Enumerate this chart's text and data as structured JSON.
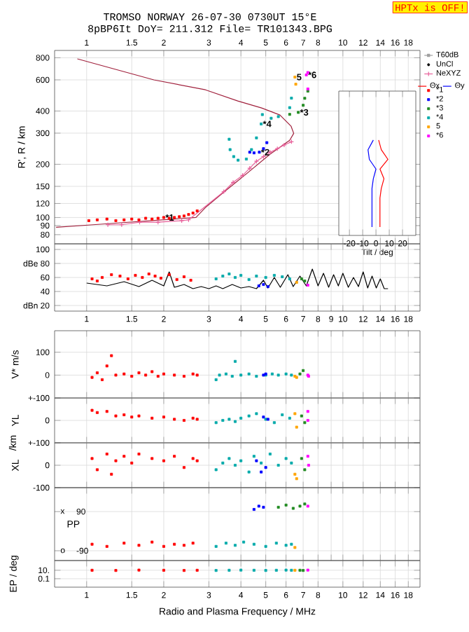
{
  "chart_data": [
    {
      "type": "scatter",
      "title": "TROMSO NORWAY 26-07-30 0730UT 15°E",
      "subtitle": "8pBP6It DoY= 211.312 File= TR101343.BPG",
      "ylabel": "R', R / km",
      "annotations": [
        "HPTx is OFF!",
        {
          "text": "*1",
          "x": 2.0,
          "y": 100
        },
        {
          "text": "*2",
          "x": 4.72,
          "y": 234
        },
        {
          "text": "*3",
          "x": 6.7,
          "y": 393
        },
        {
          "text": "*4",
          "x": 4.8,
          "y": 338
        },
        {
          "text": "5",
          "x": 6.5,
          "y": 622
        },
        {
          "text": "*6",
          "x": 7.2,
          "y": 640
        }
      ],
      "xlim": [
        0.75,
        20
      ],
      "ylim": [
        71,
        880
      ],
      "log": "xy",
      "grid": true,
      "legend": "right",
      "marker": "square",
      "xticks": [
        1,
        1.5,
        2,
        3,
        4,
        5,
        6,
        7,
        8,
        10,
        12,
        14,
        16,
        18
      ],
      "yticks": [
        80,
        90,
        100,
        120,
        150,
        200,
        300,
        400,
        600,
        800
      ],
      "series": [
        {
          "name": "T60dB",
          "type": "line",
          "color": "#a0a0a0"
        },
        {
          "name": "UnCl",
          "color": "#000000",
          "marker": "circle"
        },
        {
          "type": "line",
          "marker": "none",
          "color": "#a0203c",
          "x": [
            0.76,
            1.06,
            2.67,
            2.91,
            3.43,
            4.25,
            5.2,
            6.2,
            6.43,
            6.28,
            5.68,
            4.82,
            3.89,
            2.91,
            1.83,
            0.92
          ],
          "values": [
            88,
            91,
            100,
            114,
            139,
            179,
            228,
            273,
            299,
            328,
            380,
            416,
            456,
            527,
            600,
            789
          ]
        },
        {
          "name": "NeXYZ",
          "type": "line",
          "marker": "cross",
          "color": "#e8609a",
          "x": [
            1.21,
            1.37,
            1.61,
            1.9,
            2.35,
            2.5,
            3.43,
            3.73,
            4.06,
            4.33,
            4.6,
            4.9,
            5.2,
            5.55,
            5.9,
            6.3
          ],
          "values": [
            91,
            91,
            94,
            94,
            96,
            97,
            140,
            158,
            173,
            190,
            208,
            221,
            234,
            245,
            257,
            268
          ]
        },
        {
          "name": "*1",
          "color": "#ff0000",
          "x": [
            1.02,
            1.1,
            1.2,
            1.3,
            1.4,
            1.5,
            1.6,
            1.7,
            1.8,
            1.9,
            2.0,
            2.1,
            2.2,
            2.3,
            2.4,
            2.5,
            2.6,
            2.7
          ],
          "values": [
            96,
            97,
            98,
            96,
            97,
            98,
            97,
            99,
            98,
            99,
            100,
            99,
            100,
            101,
            102,
            104,
            106,
            109
          ]
        },
        {
          "name": "*2",
          "color": "#0000ff",
          "x": [
            4.33,
            4.5,
            4.72,
            4.9,
            5.05
          ],
          "values": [
            234,
            232,
            234,
            245,
            265
          ]
        },
        {
          "name": "*3",
          "color": "#228b22",
          "x": [
            6.2,
            6.7,
            7.0,
            7.1,
            7.3
          ],
          "values": [
            383,
            393,
            431,
            472,
            518
          ]
        },
        {
          "name": "*4",
          "color": "#00aaaa",
          "x": [
            3.6,
            3.63,
            3.75,
            3.9,
            4.2,
            4.4,
            4.6,
            4.8,
            4.85,
            5.25,
            5.6,
            6.2,
            6.3
          ],
          "values": [
            277,
            242,
            221,
            211,
            214,
            242,
            282,
            338,
            382,
            364,
            372,
            418,
            473
          ]
        },
        {
          "name": "5",
          "color": "#ffa500",
          "x": [
            6.5,
            6.55
          ],
          "values": [
            622,
            567
          ]
        },
        {
          "name": "*6",
          "color": "#ff00ff",
          "x": [
            7.2,
            7.3,
            7.3
          ],
          "values": [
            640,
            660,
            533
          ]
        }
      ]
    },
    {
      "type": "line",
      "orientation": "horizontal",
      "xlabel": "Tilt / deg",
      "xlim": [
        -28,
        30
      ],
      "xticks": [
        -20,
        -10,
        0,
        10,
        20
      ],
      "grid": "x",
      "legend": "top right",
      "categories": [
        null,
        null,
        null,
        null,
        null,
        null,
        null,
        null,
        null,
        null
      ],
      "series": [
        {
          "name": "Θx",
          "color": "#ff0000",
          "values": [
            2,
            4,
            9,
            3,
            6,
            4,
            3,
            3,
            3,
            3
          ]
        },
        {
          "name": "Θy",
          "color": "#0000ff",
          "values": [
            -2,
            -6,
            -5,
            0,
            -2,
            -3,
            -3,
            -3,
            -3,
            -3
          ]
        }
      ]
    },
    {
      "type": "scatter",
      "xlim": [
        0.75,
        20
      ],
      "ylim": [
        12,
        108
      ],
      "log": "x",
      "grid": true,
      "marker": "square",
      "xticks": [
        1,
        1.5,
        2,
        3,
        4,
        5,
        6,
        7,
        8,
        9,
        10,
        12,
        14,
        16,
        18
      ],
      "yticks": [
        {
          "value": 20,
          "label": "dBn 20"
        },
        40,
        60,
        {
          "value": 80,
          "label": "dBe 80"
        },
        100
      ],
      "series": [
        {
          "type": "line",
          "marker": "none",
          "color": "#000000",
          "x": [
            1.0,
            1.2,
            1.4,
            1.6,
            1.8,
            2.0,
            2.1,
            2.2,
            2.4,
            2.6,
            2.8,
            3.0,
            3.2,
            3.4,
            3.7,
            4.0,
            4.3,
            4.6,
            4.9,
            5.1,
            5.4,
            5.7,
            6.1,
            6.4,
            6.8,
            7.2,
            7.6,
            8.0,
            8.4,
            8.8,
            9.2,
            9.6,
            10.0,
            10.5,
            11.0,
            11.5,
            12.0,
            12.5,
            13.0,
            13.5,
            14.0,
            14.5,
            15.0
          ],
          "values": [
            52,
            48,
            54,
            47,
            56,
            48,
            68,
            46,
            50,
            44,
            47,
            44,
            48,
            44,
            50,
            45,
            47,
            44,
            56,
            45,
            60,
            46,
            64,
            47,
            62,
            48,
            72,
            48,
            66,
            46,
            64,
            48,
            66,
            46,
            60,
            47,
            68,
            45,
            62,
            45,
            58,
            44,
            44
          ]
        },
        {
          "color": "#ff0000",
          "x": [
            1.05,
            1.1,
            1.15,
            1.25,
            1.35,
            1.45,
            1.55,
            1.65,
            1.75,
            1.85,
            1.95,
            2.1,
            2.25,
            2.4,
            2.55
          ],
          "values": [
            58,
            55,
            60,
            64,
            62,
            58,
            63,
            60,
            65,
            62,
            59,
            64,
            57,
            61,
            56
          ]
        },
        {
          "color": "#00aaaa",
          "x": [
            3.2,
            3.4,
            3.6,
            3.8,
            4.0,
            4.3,
            4.6,
            5.0,
            5.4,
            5.8,
            6.2
          ],
          "values": [
            58,
            62,
            65,
            60,
            63,
            57,
            62,
            60,
            63,
            61,
            58
          ]
        },
        {
          "color": "#0000ff",
          "x": [
            4.7,
            4.9,
            5.1
          ],
          "values": [
            48,
            50,
            47
          ]
        },
        {
          "color": "#ffa500",
          "x": [
            6.6
          ],
          "values": [
            53
          ]
        },
        {
          "color": "#228b22",
          "x": [
            6.9,
            7.1
          ],
          "values": [
            58,
            55
          ]
        },
        {
          "color": "#ff00ff",
          "x": [
            7.3
          ],
          "values": [
            49
          ]
        }
      ]
    },
    {
      "type": "scatter",
      "ylabel": "V* m/s",
      "xlim": [
        0.75,
        20
      ],
      "ylim": [
        -100,
        194
      ],
      "log": "x",
      "grid": true,
      "marker": "square",
      "tick_labels": "y",
      "xticks": [
        1,
        1.5,
        2,
        3,
        4,
        5,
        6,
        7,
        8,
        9,
        10,
        12,
        14,
        16,
        18
      ],
      "yticks": [
        100,
        0,
        {
          "value": -100,
          "label": "+-100"
        }
      ],
      "series": [
        {
          "color": "#ff0000",
          "x": [
            1.05,
            1.1,
            1.15,
            1.2,
            1.25,
            1.3,
            1.4,
            1.5,
            1.6,
            1.7,
            1.8,
            1.9,
            2.0,
            2.2,
            2.4,
            2.6,
            2.7
          ],
          "values": [
            -10,
            10,
            -20,
            40,
            85,
            0,
            5,
            -5,
            10,
            0,
            15,
            -5,
            5,
            0,
            -5,
            5,
            0
          ]
        },
        {
          "color": "#00aaaa",
          "x": [
            3.2,
            3.3,
            3.5,
            3.7,
            3.8,
            4.0,
            4.3,
            4.6,
            5.0,
            5.3,
            5.6,
            6.0,
            6.3
          ],
          "values": [
            -20,
            0,
            5,
            -5,
            60,
            0,
            5,
            -5,
            0,
            5,
            0,
            5,
            0
          ]
        },
        {
          "color": "#0000ff",
          "x": [
            4.9,
            5.0
          ],
          "values": [
            0,
            5
          ]
        },
        {
          "color": "#ffa500",
          "x": [
            6.5,
            6.6
          ],
          "values": [
            -5,
            -10
          ]
        },
        {
          "color": "#228b22",
          "x": [
            6.8,
            7.0
          ],
          "values": [
            5,
            20
          ]
        },
        {
          "color": "#ff00ff",
          "x": [
            7.3,
            7.35
          ],
          "values": [
            0,
            -5
          ]
        }
      ]
    },
    {
      "type": "scatter",
      "ylabel": "YL",
      "xlim": [
        0.75,
        20
      ],
      "ylim": [
        -100,
        100
      ],
      "log": "x",
      "grid": true,
      "marker": "square",
      "tick_labels": "y",
      "xticks": [
        1,
        1.5,
        2,
        3,
        4,
        5,
        6,
        7,
        8,
        9,
        10,
        12,
        14,
        16,
        18
      ],
      "yticks": [
        {
          "value": 100,
          "label": null
        },
        0,
        {
          "value": -100,
          "label": "+-100"
        }
      ],
      "series": [
        {
          "color": "#ff0000",
          "x": [
            1.05,
            1.1,
            1.2,
            1.3,
            1.4,
            1.5,
            1.6,
            1.8,
            2.0,
            2.2,
            2.4,
            2.6,
            2.7
          ],
          "values": [
            45,
            35,
            40,
            20,
            25,
            15,
            20,
            10,
            15,
            5,
            0,
            10,
            5
          ]
        },
        {
          "color": "#00aaaa",
          "x": [
            3.2,
            3.4,
            3.6,
            3.8,
            4.0,
            4.3,
            4.6,
            5.0,
            5.4,
            5.8,
            6.2
          ],
          "values": [
            -10,
            0,
            5,
            -5,
            10,
            20,
            30,
            5,
            -10,
            25,
            10
          ]
        },
        {
          "color": "#0000ff",
          "x": [
            4.9,
            5.1
          ],
          "values": [
            15,
            5
          ]
        },
        {
          "color": "#ffa500",
          "x": [
            6.5,
            6.6
          ],
          "values": [
            30,
            -30
          ]
        },
        {
          "color": "#228b22",
          "x": [
            6.9,
            7.1
          ],
          "values": [
            20,
            -10
          ]
        },
        {
          "color": "#ff00ff",
          "x": [
            7.3,
            7.3
          ],
          "values": [
            40,
            0
          ]
        }
      ]
    },
    {
      "type": "scatter",
      "ylabel": "XL",
      "annotations": [
        "/km"
      ],
      "xlim": [
        0.75,
        20
      ],
      "ylim": [
        -100,
        100
      ],
      "log": "x",
      "grid": true,
      "marker": "square",
      "tick_labels": "y",
      "xticks": [
        1,
        1.5,
        2,
        3,
        4,
        5,
        6,
        7,
        8,
        9,
        10,
        12,
        14,
        16,
        18
      ],
      "yticks": [
        {
          "value": 100,
          "label": null
        },
        0,
        -100
      ],
      "series": [
        {
          "color": "#ff0000",
          "x": [
            1.05,
            1.1,
            1.2,
            1.25,
            1.3,
            1.4,
            1.5,
            1.6,
            1.8,
            2.0,
            2.2,
            2.4,
            2.6,
            2.7
          ],
          "values": [
            30,
            -20,
            50,
            -40,
            20,
            40,
            10,
            50,
            30,
            20,
            40,
            -10,
            30,
            20
          ]
        },
        {
          "color": "#00aaaa",
          "x": [
            3.2,
            3.4,
            3.6,
            3.8,
            4.0,
            4.3,
            4.5,
            4.8,
            5.2,
            5.6,
            6.0,
            6.3
          ],
          "values": [
            -20,
            10,
            30,
            0,
            20,
            -30,
            40,
            10,
            50,
            0,
            30,
            10
          ]
        },
        {
          "color": "#0000ff",
          "x": [
            4.6,
            4.8,
            5.0
          ],
          "values": [
            20,
            -30,
            -10
          ]
        },
        {
          "color": "#ffa500",
          "x": [
            6.5,
            6.6
          ],
          "values": [
            -40,
            -60
          ]
        },
        {
          "color": "#228b22",
          "x": [
            6.9,
            7.1
          ],
          "values": [
            30,
            -20
          ]
        },
        {
          "color": "#ff00ff",
          "x": [
            7.3,
            7.35
          ],
          "values": [
            40,
            0
          ]
        }
      ]
    },
    {
      "type": "scatter",
      "ylabel": "PP",
      "annotations": [
        "x",
        "o"
      ],
      "xlim": [
        0.75,
        20
      ],
      "ylim": [
        -135,
        200
      ],
      "log": "x",
      "grid": true,
      "marker": "square",
      "tick_labels": "y",
      "xticks": [
        1,
        1.5,
        2,
        3,
        4,
        5,
        6,
        7,
        8,
        9,
        10,
        12,
        14,
        16,
        18
      ],
      "yticks": [
        90,
        -90
      ],
      "series": [
        {
          "color": "#ff0000",
          "x": [
            1.05,
            1.2,
            1.4,
            1.6,
            1.8,
            2.0,
            2.2,
            2.4,
            2.6
          ],
          "values": [
            -60,
            -70,
            -55,
            -65,
            -50,
            -70,
            -60,
            -65,
            -55
          ]
        },
        {
          "color": "#00aaaa",
          "x": [
            3.2,
            3.5,
            3.8,
            4.1,
            4.5,
            5.0,
            5.5,
            6.0,
            6.3
          ],
          "values": [
            -70,
            -55,
            -65,
            -50,
            -60,
            -70,
            -55,
            -65,
            -60
          ]
        },
        {
          "color": "#0000ff",
          "x": [
            4.5,
            4.7,
            4.9
          ],
          "values": [
            100,
            115,
            110
          ]
        },
        {
          "color": "#ffa500",
          "x": [
            6.5
          ],
          "values": [
            -75
          ]
        },
        {
          "color": "#228b22",
          "x": [
            5.6,
            6.0,
            6.4,
            6.8,
            7.1
          ],
          "values": [
            110,
            120,
            105,
            115,
            125
          ]
        },
        {
          "color": "#ff00ff",
          "x": [
            7.3
          ],
          "values": [
            115
          ]
        }
      ]
    },
    {
      "type": "scatter",
      "ylabel": "EP / deg",
      "xlabel": "Radio and Plasma Frequency / MHz",
      "xlim": [
        0.75,
        20
      ],
      "ylim": [
        0.001,
        2000
      ],
      "log": "xy",
      "grid": true,
      "marker": "square",
      "xticks": [
        1,
        1.5,
        2,
        3,
        4,
        5,
        6,
        7,
        8,
        10,
        12,
        14,
        16,
        18
      ],
      "yticks": [
        {
          "value": 10,
          "label": "10."
        },
        0.1
      ],
      "series": [
        {
          "color": "#ff0000",
          "x": [
            1.05,
            1.3,
            1.6,
            2.0,
            2.4,
            2.7
          ],
          "values": [
            10,
            9,
            11,
            10,
            9,
            10
          ]
        },
        {
          "color": "#00aaaa",
          "x": [
            3.2,
            3.6,
            4.0,
            4.5,
            5.0,
            5.5,
            6.0,
            6.3
          ],
          "values": [
            9,
            10,
            11,
            10,
            9,
            10,
            11,
            10
          ]
        },
        {
          "color": "#ffa500",
          "x": [
            6.5
          ],
          "values": [
            10
          ]
        },
        {
          "color": "#228b22",
          "x": [
            6.8,
            7.0
          ],
          "values": [
            10,
            9
          ]
        },
        {
          "color": "#ff00ff",
          "x": [
            7.3
          ],
          "values": [
            11
          ]
        }
      ]
    }
  ]
}
